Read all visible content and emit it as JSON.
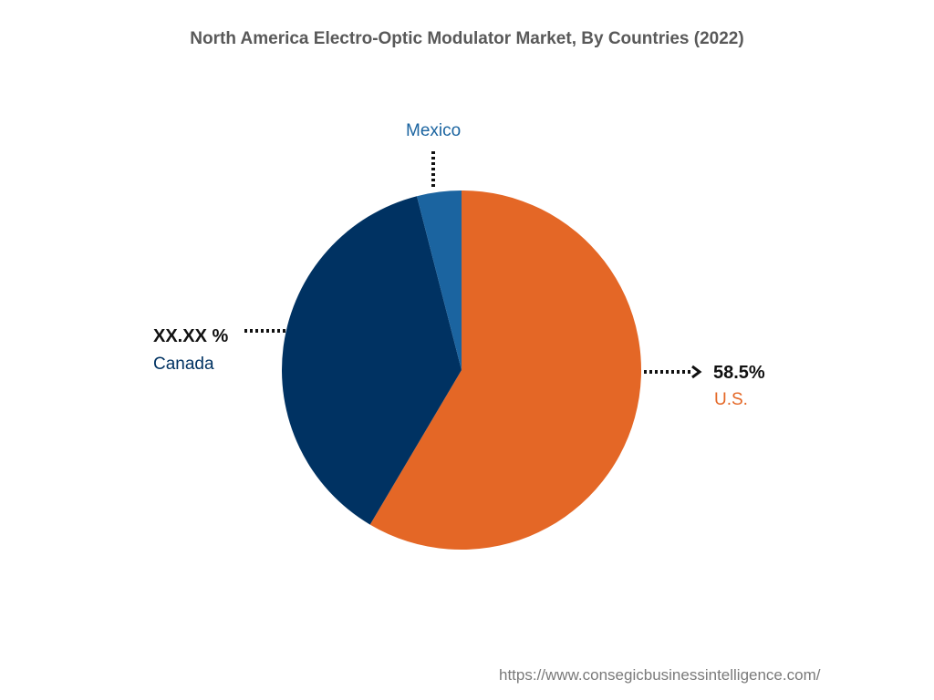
{
  "chart_data": {
    "type": "pie",
    "title": "North America Electro-Optic Modulator Market, By Countries (2022)",
    "slices": [
      {
        "label": "U.S.",
        "value": 58.5,
        "value_label": "58.5%",
        "color": "#E46726"
      },
      {
        "label": "Canada",
        "value": 37.5,
        "value_label": "XX.XX %",
        "color": "#003262"
      },
      {
        "label": "Mexico",
        "value": 4.0,
        "value_label": "",
        "color": "#1B64A0"
      }
    ]
  },
  "footer": {
    "source_url": "https://www.consegicbusinessintelligence.com/"
  }
}
